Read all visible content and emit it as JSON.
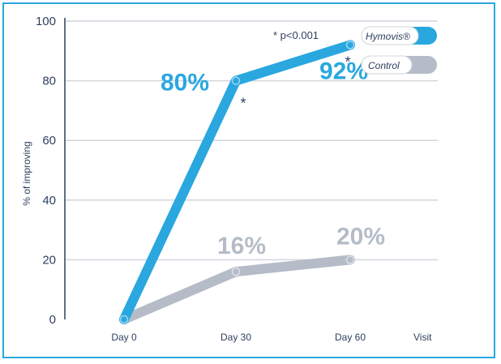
{
  "chart_data": {
    "type": "line",
    "ylabel": "% of improving",
    "xlabel": "Visit",
    "categories": [
      "Day 0",
      "Day 30",
      "Day 60"
    ],
    "y_ticks": [
      "0",
      "20",
      "40",
      "60",
      "80",
      "100"
    ],
    "ylim": [
      0,
      100
    ],
    "grid": true,
    "legend_position": "top-right",
    "series": [
      {
        "name": "Hymovis®",
        "values": [
          0,
          80,
          92
        ],
        "labels": [
          "",
          "80%",
          "92%"
        ],
        "significance": [
          "",
          "*",
          "*"
        ],
        "color": "#2aa7df"
      },
      {
        "name": "Control",
        "values": [
          0,
          16,
          20
        ],
        "labels": [
          "",
          "16%",
          "20%"
        ],
        "significance": [
          "",
          "",
          ""
        ],
        "color": "#b5bcc8"
      }
    ],
    "annotation": "* p<0.001",
    "axis_color": "#2f3f5e",
    "grid_color": "#d3d6dd"
  }
}
